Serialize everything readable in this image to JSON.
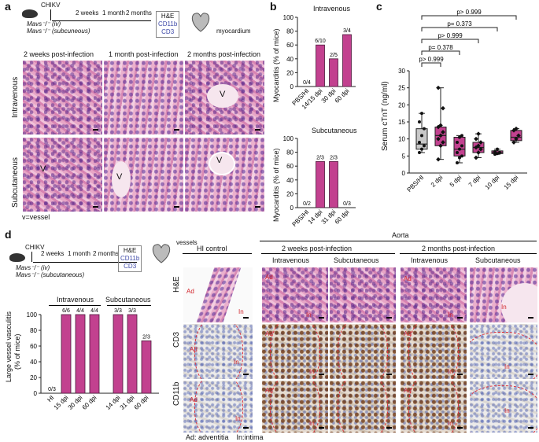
{
  "panel_a": {
    "label": "a",
    "virus": "CHIKV",
    "mouse_iv": "Mavs⁻/⁻ (iv)",
    "mouse_sc": "Mavs⁻/⁻ (subcuneous)",
    "timeline": [
      "2 weeks",
      "1 month",
      "2 months"
    ],
    "stains": [
      "H&E",
      "CD11b",
      "CD3"
    ],
    "tissue": "myocardium",
    "col_headers": [
      "2 weeks post-infection",
      "1 month post-infection",
      "2 months post-infection"
    ],
    "row_headers": [
      "Intravenous",
      "Subcutaneous"
    ],
    "vessel_mark": "V",
    "footnote": "v=vessel"
  },
  "panel_b": {
    "label": "b",
    "charts": [
      {
        "title": "Intravenous",
        "ylabel": "Myocarditis (% of mice)"
      },
      {
        "title": "Subcutaneous",
        "ylabel": "Myocarditis (% of mice)"
      }
    ]
  },
  "panel_c": {
    "label": "c",
    "ylabel": "Serum cTnT (ng/ml)",
    "pvalues": [
      "p> 0.999",
      "p= 0.373",
      "p> 0.999",
      "p= 0.378",
      "p> 0.999"
    ]
  },
  "panel_d": {
    "label": "d",
    "virus": "CHIKV",
    "mouse_iv": "Mavs⁻/⁻ (iv)",
    "mouse_sc": "Mavs⁻/⁻ (subcutaneous)",
    "timeline": [
      "2 weeks",
      "1 month",
      "2 months"
    ],
    "stains": [
      "H&E",
      "CD11b",
      "CD3"
    ],
    "tissue": "vessels",
    "group_iv": "Intravenous",
    "group_sc": "Subcutaneous",
    "ylabel_line1": "Large vessel vasculitis",
    "ylabel_line2": "(% of mice)",
    "aorta": "Aorta",
    "hi_control": "HI control",
    "col_groups": [
      "2 weeks post-infection",
      "2 months post-infection"
    ],
    "sub_cols": [
      "Intravenous",
      "Subcutaneous"
    ],
    "row_headers": [
      "H&E",
      "CD3",
      "CD11b"
    ],
    "ad": "Ad",
    "in": "In",
    "legend": "Ad: adventitia    In:intima"
  },
  "chart_data": [
    {
      "type": "bar",
      "title": "Intravenous",
      "ylabel": "Myocarditis (% of mice)",
      "categories": [
        "PBS/HI",
        "14/15 dpi",
        "30 dpi",
        "60 dpi"
      ],
      "values": [
        0,
        60,
        40,
        75
      ],
      "bar_labels": [
        "0/4",
        "6/10",
        "2/5",
        "3/4"
      ],
      "ylim": [
        0,
        100
      ],
      "yticks": [
        0,
        20,
        40,
        60,
        80,
        100
      ]
    },
    {
      "type": "bar",
      "title": "Subcutaneous",
      "ylabel": "Myocarditis (% of mice)",
      "categories": [
        "PBS/HI",
        "14 dpi",
        "31 dpi",
        "60 dpi"
      ],
      "values": [
        0,
        66.7,
        66.7,
        0
      ],
      "bar_labels": [
        "0/2",
        "2/3",
        "2/3",
        "0/3"
      ],
      "ylim": [
        0,
        100
      ],
      "yticks": [
        0,
        20,
        40,
        60,
        80,
        100
      ]
    },
    {
      "type": "box",
      "ylabel": "Serum cTnT (ng/ml)",
      "categories": [
        "PBS/HI",
        "2 dpi",
        "5 dpi",
        "7 dpi",
        "10 dpi",
        "15 dpi"
      ],
      "colors": [
        "#c8c8c8",
        "#c2418f",
        "#c2418f",
        "#c2418f",
        "#c2418f",
        "#c2418f"
      ],
      "boxes": [
        {
          "min": 6,
          "q1": 7,
          "median": 8.5,
          "q3": 13,
          "max": 17.5
        },
        {
          "min": 4,
          "q1": 8,
          "median": 11,
          "q3": 13.5,
          "max": 25
        },
        {
          "min": 3,
          "q1": 5,
          "median": 7,
          "q3": 10.5,
          "max": 11
        },
        {
          "min": 4.5,
          "q1": 6,
          "median": 7.5,
          "q3": 9,
          "max": 11.5
        },
        {
          "min": 5.5,
          "q1": 5.7,
          "median": 6,
          "q3": 6.5,
          "max": 7
        },
        {
          "min": 9,
          "q1": 9.5,
          "median": 10.5,
          "q3": 12.5,
          "max": 13
        }
      ],
      "points": [
        [
          6,
          7,
          8,
          9,
          11,
          13,
          15,
          17.5
        ],
        [
          4,
          8,
          9,
          10,
          11,
          12,
          13.5,
          14,
          19,
          25
        ],
        [
          3,
          4.5,
          5,
          6,
          7,
          8,
          9,
          10.5,
          11
        ],
        [
          4.5,
          6,
          7,
          7.5,
          8,
          9,
          10,
          11.5
        ],
        [
          5.5,
          5.7,
          6,
          6.3,
          7
        ],
        [
          9,
          10,
          11,
          12.5,
          13
        ]
      ],
      "ylim": [
        0,
        30
      ],
      "yticks": [
        0,
        5,
        10,
        15,
        20,
        25,
        30
      ],
      "comparisons": [
        {
          "from": "PBS/HI",
          "to": "15 dpi",
          "label": "p> 0.999"
        },
        {
          "from": "PBS/HI",
          "to": "10 dpi",
          "label": "p= 0.373"
        },
        {
          "from": "PBS/HI",
          "to": "7 dpi",
          "label": "p> 0.999"
        },
        {
          "from": "PBS/HI",
          "to": "5 dpi",
          "label": "p= 0.378"
        },
        {
          "from": "PBS/HI",
          "to": "2 dpi",
          "label": "p> 0.999"
        }
      ]
    },
    {
      "type": "bar",
      "ylabel": "Large vessel vasculitis (% of mice)",
      "groups": [
        "Intravenous",
        "Subcutaneous"
      ],
      "categories": [
        "HI",
        "15 dpi",
        "30 dpi",
        "60 dpi",
        "14 dpi",
        "31 dpi",
        "60 dpi"
      ],
      "values": [
        0,
        100,
        100,
        100,
        100,
        100,
        66.7
      ],
      "bar_labels": [
        "0/3",
        "6/6",
        "4/4",
        "4/4",
        "3/3",
        "3/3",
        "2/3"
      ],
      "ylim": [
        0,
        100
      ],
      "yticks": [
        0,
        20,
        40,
        60,
        80,
        100
      ]
    }
  ]
}
